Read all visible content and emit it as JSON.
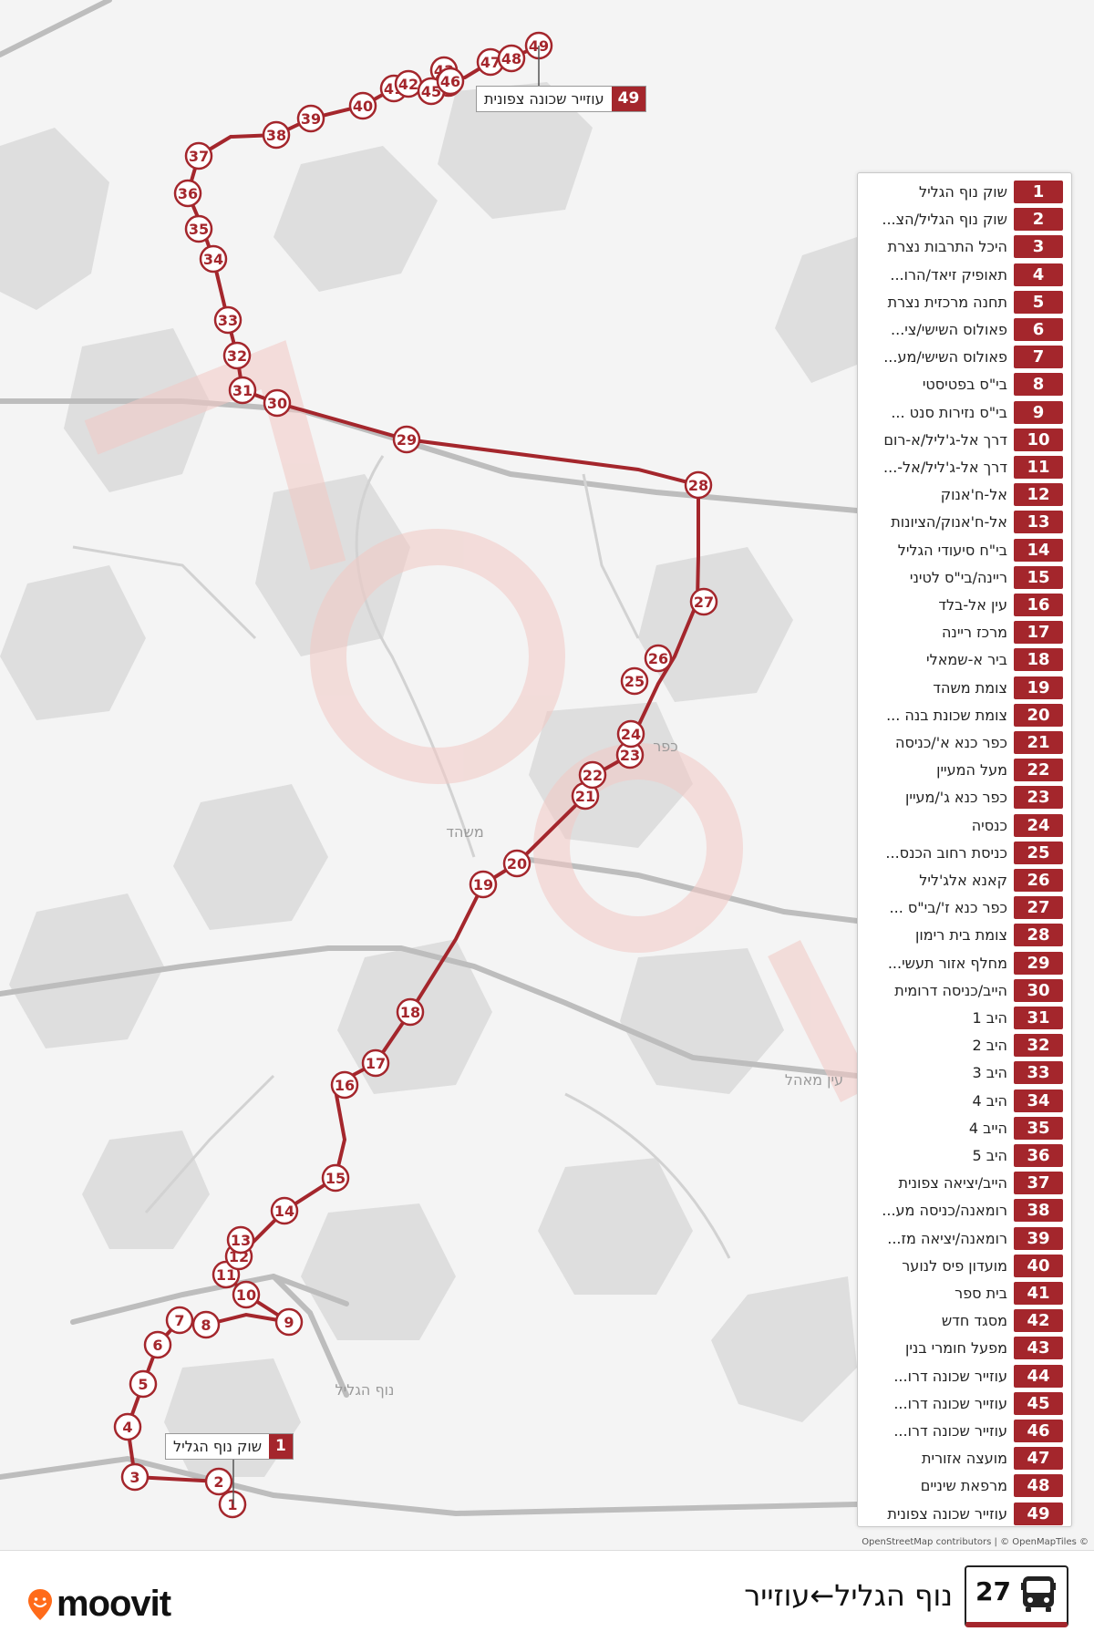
{
  "map": {
    "place_labels": [
      {
        "text": "משהד"
      },
      {
        "text": "נוף הגליל"
      },
      {
        "text": "עין מאהל"
      },
      {
        "text": "כפר"
      }
    ],
    "colors": {
      "route": "#a4262c",
      "stop_fill": "#ffffff",
      "land": "#f4f4f4",
      "roads": "#b9b9b9",
      "watermark": "#f2c9c4"
    }
  },
  "callouts": [
    {
      "num": "1",
      "name": "שוק נוף הגליל"
    },
    {
      "num": "49",
      "name": "עוזייר שכונה צפונית"
    }
  ],
  "stops": [
    {
      "num": "1",
      "name": "שוק נוף הגליל"
    },
    {
      "num": "2",
      "name": "שוק נוף הגליל/הצ..."
    },
    {
      "num": "3",
      "name": "היכל התרבות נצרת"
    },
    {
      "num": "4",
      "name": "תאופיק זיאד/הרו..."
    },
    {
      "num": "5",
      "name": "תחנה מרכזית נצרת"
    },
    {
      "num": "6",
      "name": "פאולוס השישי/צי..."
    },
    {
      "num": "7",
      "name": "פאולוס השישי/מע..."
    },
    {
      "num": "8",
      "name": "בי\"ס בפטיסטי"
    },
    {
      "num": "9",
      "name": "בי\"ס נזירות סנט ..."
    },
    {
      "num": "10",
      "name": "דרך אל-ג'ליל/א-רום"
    },
    {
      "num": "11",
      "name": "דרך אל-ג'ליל/אל-..."
    },
    {
      "num": "12",
      "name": "אל-ח'אנוק"
    },
    {
      "num": "13",
      "name": "אל-ח'אנוק/הציונות"
    },
    {
      "num": "14",
      "name": "בי\"ח סיעודי הגליל"
    },
    {
      "num": "15",
      "name": "ריינה/בי\"ס לטיני"
    },
    {
      "num": "16",
      "name": "עין אל-בלד"
    },
    {
      "num": "17",
      "name": "מרכז ריינה"
    },
    {
      "num": "18",
      "name": "ביר א-שמאלי"
    },
    {
      "num": "19",
      "name": "צומת משהד"
    },
    {
      "num": "20",
      "name": "צומת שכונת בנה ..."
    },
    {
      "num": "21",
      "name": "כפר כנא א'/כניסה"
    },
    {
      "num": "22",
      "name": "מעל המעיין"
    },
    {
      "num": "23",
      "name": "כפר כנא ג'/מעיין"
    },
    {
      "num": "24",
      "name": "כנסיה"
    },
    {
      "num": "25",
      "name": "כניסת רחוב הכנס..."
    },
    {
      "num": "26",
      "name": "קאנא אלג'ליל"
    },
    {
      "num": "27",
      "name": "כפר כנא ז'/בי\"ס ..."
    },
    {
      "num": "28",
      "name": "צומת בית רימון"
    },
    {
      "num": "29",
      "name": "מחלף אזור תעשי..."
    },
    {
      "num": "30",
      "name": "הייב/כניסה דרומית"
    },
    {
      "num": "31",
      "name": "היב 1"
    },
    {
      "num": "32",
      "name": "היב 2"
    },
    {
      "num": "33",
      "name": "היב 3"
    },
    {
      "num": "34",
      "name": "היב 4"
    },
    {
      "num": "35",
      "name": "הייב 4"
    },
    {
      "num": "36",
      "name": "היב 5"
    },
    {
      "num": "37",
      "name": "הייב/יציאה צפונית"
    },
    {
      "num": "38",
      "name": "רומאנה/כניסה מע..."
    },
    {
      "num": "39",
      "name": "רומאנה/יציאה מז..."
    },
    {
      "num": "40",
      "name": "מועדון פיס לנוער"
    },
    {
      "num": "41",
      "name": "בית ספר"
    },
    {
      "num": "42",
      "name": "מסגד חדש"
    },
    {
      "num": "43",
      "name": "מפעל חומרי בנין"
    },
    {
      "num": "44",
      "name": "עוזייר שכונה דרו..."
    },
    {
      "num": "45",
      "name": "עוזייר שכונה דרו..."
    },
    {
      "num": "46",
      "name": "עוזייר שכונה דרו..."
    },
    {
      "num": "47",
      "name": "מועצה אזורית"
    },
    {
      "num": "48",
      "name": "מרפאת שיניים"
    },
    {
      "num": "49",
      "name": "עוזייר שכונה צפונית"
    }
  ],
  "attribution": "OpenStreetMap contributors | © OpenMapTiles ©",
  "footer": {
    "brand": "moovit",
    "route_number": "27",
    "route_title": "נוף הגליל←עוזייר",
    "bus_icon": "bus-icon",
    "logo_icon": "moovit-pin-icon"
  }
}
